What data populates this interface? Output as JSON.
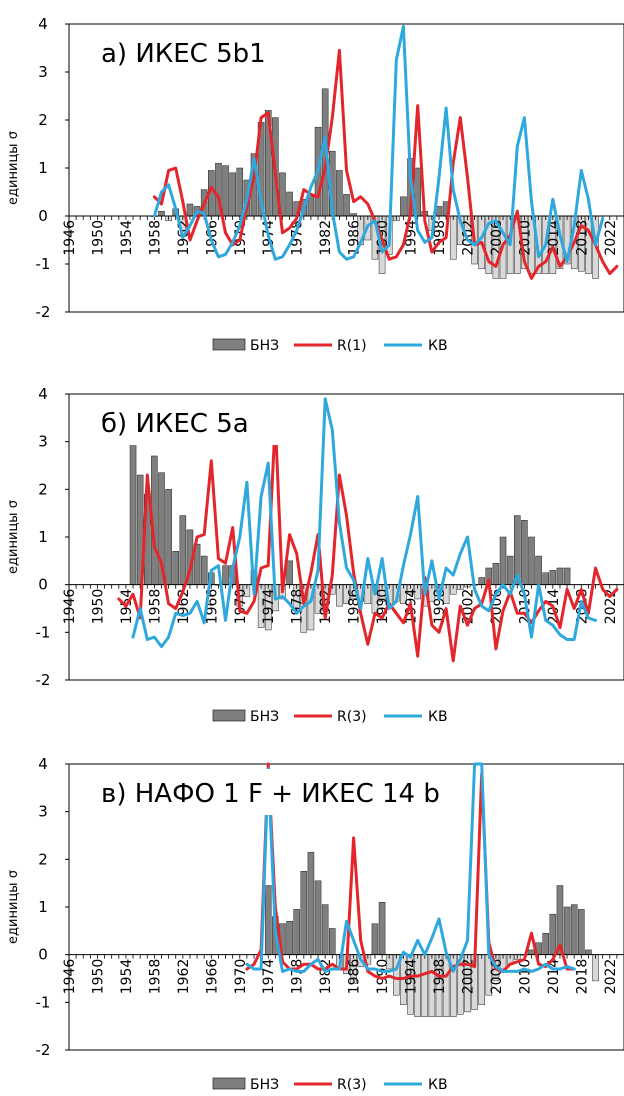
{
  "ylabel": "единицы σ",
  "legend": {
    "bars": "БНЗ",
    "line_red": "R(1)",
    "line_blue": "КВ"
  },
  "colors": {
    "bar_pos": "#7f7f7f",
    "bar_neg": "#d9d9d9",
    "red": "#e3262c",
    "blue": "#2fa8dd"
  },
  "chart_data": [
    {
      "type": "bar+line",
      "title": "а)  ИКЕС  5b1",
      "ylabel": "единицы σ",
      "ylim": [
        -2,
        4
      ],
      "yticks": [
        "-2",
        "-1",
        "0",
        "1",
        "2",
        "3",
        "4"
      ],
      "xlim": [
        1946,
        2024
      ],
      "xticks": [
        "1946",
        "1950",
        "1954",
        "1958",
        "1962",
        "1966",
        "1970",
        "1974",
        "1978",
        "1982",
        "1986",
        "1990",
        "1994",
        "1998",
        "2002",
        "2006",
        "2010",
        "2014",
        "2018",
        "2022"
      ],
      "legend": [
        "БНЗ",
        "R(1)",
        "КВ"
      ],
      "series": [
        {
          "name": "БНЗ",
          "kind": "bar",
          "start": 1958,
          "values": [
            0.0,
            0.1,
            -0.1,
            0.15,
            -0.3,
            0.25,
            0.2,
            0.55,
            0.95,
            1.1,
            1.05,
            0.9,
            1.0,
            0.75,
            1.3,
            1.95,
            2.2,
            2.05,
            0.9,
            0.5,
            0.3,
            0.35,
            0.4,
            1.85,
            2.65,
            1.35,
            0.95,
            0.45,
            0.05,
            -0.6,
            -0.5,
            -0.9,
            -1.2,
            -0.8,
            -0.1,
            0.4,
            1.2,
            1.0,
            0.1,
            -0.3,
            0.2,
            0.3,
            -0.9,
            -0.6,
            -0.3,
            -1.0,
            -1.1,
            -1.2,
            -1.3,
            -1.3,
            -1.2,
            -1.2,
            -1.1,
            -1.2,
            -1.2,
            -1.2,
            -1.2,
            -1.1,
            -1.0,
            -1.1,
            -1.15,
            -1.2,
            -1.3
          ]
        },
        {
          "name": "R(1)",
          "kind": "line",
          "start": 1958,
          "values": [
            0.4,
            0.25,
            0.95,
            1.0,
            0.3,
            -0.5,
            -0.1,
            0.25,
            0.6,
            0.4,
            -0.35,
            -0.6,
            -0.5,
            0.2,
            0.8,
            2.05,
            2.15,
            0.9,
            -0.35,
            -0.25,
            -0.05,
            0.55,
            0.45,
            0.4,
            1.0,
            2.05,
            3.45,
            0.95,
            0.3,
            0.4,
            0.25,
            -0.1,
            -0.5,
            -0.9,
            -0.85,
            -0.6,
            0.05,
            2.3,
            -0.1,
            -0.75,
            -0.55,
            -0.45,
            1.1,
            2.05,
            0.8,
            -0.6,
            -0.55,
            -0.95,
            -1.05,
            -0.6,
            -0.4,
            0.1,
            -0.95,
            -1.3,
            -1.05,
            -0.95,
            -0.65,
            -1.05,
            -0.85,
            -0.55,
            -0.2,
            -0.3,
            -0.6,
            -0.95,
            -1.2,
            -1.05
          ]
        },
        {
          "name": "КВ",
          "kind": "line",
          "start": 1958,
          "values": [
            0.0,
            0.5,
            0.65,
            0.15,
            -0.45,
            -0.2,
            0.1,
            0.05,
            -0.5,
            -0.85,
            -0.8,
            -0.55,
            -0.2,
            0.35,
            1.2,
            0.3,
            -0.4,
            -0.9,
            -0.85,
            -0.6,
            -0.3,
            0.15,
            0.6,
            0.95,
            1.65,
            0.1,
            -0.75,
            -0.9,
            -0.85,
            -0.55,
            -0.2,
            -0.1,
            -0.75,
            -0.6,
            3.25,
            3.95,
            0.8,
            -0.3,
            -0.55,
            -0.45,
            0.8,
            2.25,
            0.55,
            -0.1,
            -0.5,
            -0.6,
            -0.45,
            -0.15,
            -0.1,
            -0.35,
            -0.6,
            1.45,
            2.05,
            0.3,
            -0.85,
            -0.6,
            0.35,
            -0.4,
            -0.95,
            -0.2,
            0.95,
            0.35,
            -0.6,
            -0.05
          ]
        }
      ]
    },
    {
      "type": "bar+line",
      "title": "б)  ИКЕС  5a",
      "ylabel": "единицы σ",
      "ylim": [
        -2,
        4
      ],
      "yticks": [
        "-2",
        "-1",
        "0",
        "1",
        "2",
        "3",
        "4"
      ],
      "xlim": [
        1946,
        2024
      ],
      "xticks": [
        "1946",
        "1950",
        "1954",
        "1958",
        "1962",
        "1966",
        "1970",
        "1974",
        "1978",
        "1982",
        "1986",
        "1990",
        "1994",
        "1998",
        "2002",
        "2006",
        "2010",
        "2014",
        "2018",
        "2022"
      ],
      "legend": [
        "БНЗ",
        "R(3)",
        "КВ"
      ],
      "series": [
        {
          "name": "БНЗ",
          "kind": "bar",
          "start": 1955,
          "values": [
            2.95,
            2.3,
            1.9,
            2.7,
            2.35,
            2.0,
            0.7,
            1.45,
            1.15,
            0.85,
            0.6,
            0.25,
            0.0,
            0.4,
            0.4,
            -0.45,
            -0.25,
            0.3,
            -0.9,
            -0.95,
            -0.55,
            -0.3,
            0.5,
            -0.5,
            -1.0,
            -0.95,
            -0.6,
            -0.55,
            -0.2,
            -0.45,
            -0.4,
            -0.3,
            -0.35,
            -0.4,
            -0.6,
            -0.35,
            -0.45,
            -0.35,
            -0.4,
            -0.2,
            -0.3,
            -0.45,
            -0.35,
            -0.15,
            -0.4,
            -0.2,
            -0.1,
            -0.05,
            0.0,
            0.15,
            0.35,
            0.45,
            1.0,
            0.6,
            1.45,
            1.35,
            1.0,
            0.6,
            0.25,
            0.3,
            0.35,
            0.35
          ]
        },
        {
          "name": "R(3)",
          "kind": "line",
          "start": 1953,
          "values": [
            -0.3,
            -0.45,
            -0.2,
            -0.7,
            2.3,
            0.8,
            0.45,
            -0.4,
            -0.5,
            -0.15,
            0.3,
            1.0,
            1.05,
            2.6,
            0.55,
            0.45,
            1.2,
            -0.55,
            -0.6,
            -0.35,
            0.35,
            0.4,
            3.45,
            -0.15,
            1.05,
            0.65,
            -0.4,
            0.25,
            1.05,
            -0.7,
            0.2,
            2.3,
            1.45,
            0.25,
            -0.6,
            -1.25,
            -0.6,
            -0.7,
            -0.4,
            -0.6,
            -0.8,
            -0.4,
            -1.5,
            0.15,
            -0.85,
            -1.0,
            -0.5,
            -1.6,
            -0.45,
            -0.85,
            -0.5,
            -0.4,
            0.1,
            -1.35,
            -0.55,
            -0.15,
            -0.6,
            -0.6,
            -0.8,
            -0.55,
            -0.35,
            -0.45,
            -0.9,
            -0.1,
            -0.5,
            -0.1,
            -0.6,
            0.35,
            -0.1,
            -0.25,
            -0.1
          ]
        },
        {
          "name": "КВ",
          "kind": "line",
          "start": 1955,
          "values": [
            -1.1,
            -0.5,
            -1.15,
            -1.1,
            -1.3,
            -1.1,
            -0.6,
            -0.65,
            -0.6,
            -0.35,
            -0.8,
            0.3,
            0.4,
            -0.75,
            0.35,
            1.0,
            2.15,
            -0.2,
            1.85,
            2.55,
            -0.3,
            -0.25,
            -0.4,
            -0.6,
            -0.45,
            -0.35,
            0.3,
            3.9,
            3.25,
            1.3,
            0.35,
            0.1,
            -0.5,
            0.55,
            -0.2,
            0.55,
            -0.5,
            -0.35,
            0.4,
            1.05,
            1.85,
            -0.2,
            0.5,
            -0.3,
            0.35,
            0.2,
            0.65,
            1.0,
            -0.1,
            -0.45,
            -0.55,
            -0.2,
            0.0,
            -0.2,
            0.2,
            -0.2,
            -1.1,
            0.0,
            -0.75,
            -0.85,
            -1.05,
            -1.15,
            -1.15,
            -0.35,
            -0.7,
            -0.75
          ]
        }
      ]
    },
    {
      "type": "bar+line",
      "title": "в)  НАФО  1 F + ИКЕС 14 b",
      "ylabel": "единицы σ",
      "ylim": [
        -2,
        4
      ],
      "yticks": [
        "-2",
        "-1",
        "0",
        "1",
        "2",
        "3",
        "4"
      ],
      "xlim": [
        1946,
        2024
      ],
      "xticks": [
        "1946",
        "1950",
        "1954",
        "1958",
        "1962",
        "1966",
        "1970",
        "1974",
        "1978",
        "1982",
        "1986",
        "1990",
        "1994",
        "1998",
        "2002",
        "2006",
        "2010",
        "2014",
        "2018",
        "2022"
      ],
      "legend": [
        "БНЗ",
        "R(3)",
        "КВ"
      ],
      "series": [
        {
          "name": "БНЗ",
          "kind": "bar",
          "start": 1974,
          "values": [
            1.45,
            0.8,
            0.65,
            0.7,
            0.95,
            1.75,
            2.15,
            1.55,
            1.05,
            0.55,
            -0.3,
            -0.4,
            -0.6,
            -0.25,
            -0.2,
            0.65,
            1.1,
            -0.3,
            -0.85,
            -1.05,
            -1.25,
            -1.3,
            -1.3,
            -1.3,
            -1.3,
            -1.3,
            -1.3,
            -1.25,
            -1.2,
            -1.15,
            -1.05,
            -0.85,
            -0.55,
            -0.3,
            -0.2,
            -0.1,
            0.0,
            0.1,
            0.25,
            0.45,
            0.85,
            1.45,
            1.0,
            1.05,
            0.95,
            0.1,
            -0.55
          ]
        },
        {
          "name": "R(3)",
          "kind": "line",
          "start": 1971,
          "values": [
            -0.3,
            -0.2,
            0.1,
            4.1,
            1.0,
            -0.15,
            -0.3,
            -0.3,
            -0.2,
            -0.2,
            -0.3,
            -0.3,
            -0.2,
            -0.3,
            -0.3,
            2.45,
            0.3,
            -0.35,
            -0.45,
            -0.5,
            -0.45,
            -0.5,
            -0.5,
            -0.45,
            -0.45,
            -0.4,
            -0.35,
            -0.45,
            -0.45,
            -0.25,
            -0.2,
            -0.2,
            -0.25,
            3.8,
            0.25,
            -0.3,
            -0.35,
            -0.2,
            -0.15,
            -0.1,
            0.45,
            -0.2,
            -0.25,
            -0.1,
            0.2,
            -0.3,
            -0.3
          ]
        },
        {
          "name": "КВ",
          "kind": "line",
          "start": 1971,
          "values": [
            -0.2,
            -0.3,
            -0.3,
            3.9,
            0.5,
            -0.35,
            -0.3,
            -0.35,
            -0.35,
            -0.2,
            -0.1,
            -0.35,
            -0.3,
            -0.3,
            0.7,
            0.3,
            -0.1,
            -0.3,
            -0.3,
            -0.35,
            -0.35,
            -0.3,
            0.05,
            -0.05,
            0.3,
            0.0,
            0.35,
            0.75,
            0.05,
            -0.35,
            -0.1,
            0.3,
            4.0,
            4.0,
            0.0,
            -0.25,
            -0.35,
            -0.35,
            -0.35,
            -0.3,
            -0.35,
            -0.3,
            -0.2,
            -0.3,
            -0.3,
            -0.25,
            -0.3
          ]
        }
      ]
    }
  ]
}
